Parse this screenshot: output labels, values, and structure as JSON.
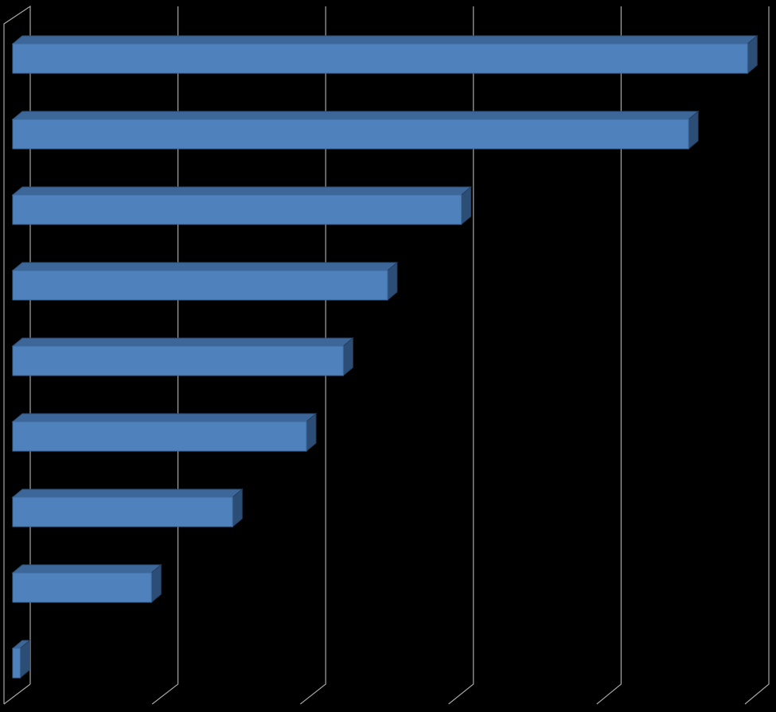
{
  "chart_data": {
    "type": "bar",
    "orientation": "horizontal",
    "three_d": true,
    "categories": [
      null,
      null,
      null,
      null,
      null,
      null,
      null,
      null,
      null
    ],
    "values": [
      4.98,
      4.58,
      3.04,
      2.54,
      2.24,
      1.99,
      1.49,
      0.94,
      0.05
    ],
    "color": "#4f81bd",
    "xlim": [
      0,
      5
    ],
    "xticks": [
      0,
      1,
      2,
      3,
      4,
      5
    ],
    "grid": true
  }
}
